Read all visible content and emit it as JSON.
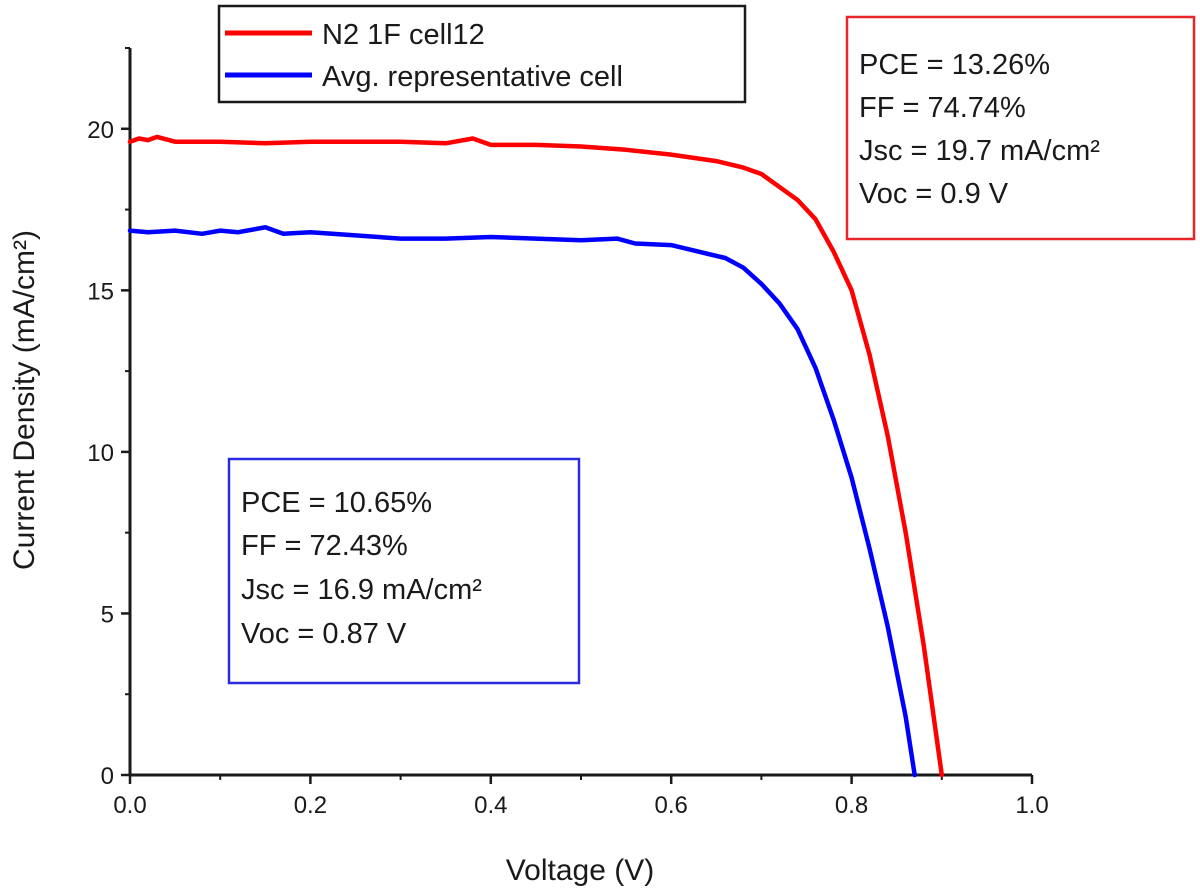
{
  "chart_data": {
    "type": "line",
    "xlabel": "Voltage (V)",
    "ylabel": "Current Density (mA/cm²)",
    "xlim": [
      0.0,
      1.0
    ],
    "ylim": [
      0,
      22.5
    ],
    "x_ticks": [
      "0.0",
      "0.2",
      "0.4",
      "0.6",
      "0.8",
      "1.0"
    ],
    "y_ticks": [
      "0",
      "5",
      "10",
      "15",
      "20"
    ],
    "grid": false,
    "legend_position": "top-center",
    "series": [
      {
        "name": "N2 1F cell12",
        "color": "#ff0000",
        "x": [
          0.0,
          0.01,
          0.02,
          0.03,
          0.05,
          0.1,
          0.15,
          0.2,
          0.25,
          0.3,
          0.35,
          0.38,
          0.4,
          0.45,
          0.5,
          0.55,
          0.6,
          0.65,
          0.68,
          0.7,
          0.72,
          0.74,
          0.76,
          0.78,
          0.8,
          0.82,
          0.84,
          0.86,
          0.88,
          0.89,
          0.9
        ],
        "y": [
          19.6,
          19.7,
          19.65,
          19.75,
          19.6,
          19.6,
          19.55,
          19.6,
          19.6,
          19.6,
          19.55,
          19.7,
          19.5,
          19.5,
          19.45,
          19.35,
          19.2,
          19.0,
          18.8,
          18.6,
          18.2,
          17.8,
          17.2,
          16.2,
          15.0,
          13.0,
          10.5,
          7.5,
          4.0,
          2.0,
          0.0
        ]
      },
      {
        "name": "Avg. representative cell",
        "color": "#0000ff",
        "x": [
          0.0,
          0.02,
          0.05,
          0.08,
          0.1,
          0.12,
          0.15,
          0.17,
          0.2,
          0.25,
          0.3,
          0.35,
          0.4,
          0.45,
          0.5,
          0.54,
          0.56,
          0.6,
          0.63,
          0.66,
          0.68,
          0.7,
          0.72,
          0.74,
          0.76,
          0.78,
          0.8,
          0.82,
          0.84,
          0.86,
          0.87
        ],
        "y": [
          16.85,
          16.8,
          16.85,
          16.75,
          16.85,
          16.8,
          16.95,
          16.75,
          16.8,
          16.7,
          16.6,
          16.6,
          16.65,
          16.6,
          16.55,
          16.6,
          16.45,
          16.4,
          16.2,
          16.0,
          15.7,
          15.2,
          14.6,
          13.8,
          12.6,
          11.0,
          9.2,
          7.0,
          4.6,
          1.8,
          0.0
        ]
      }
    ],
    "annotations": [
      {
        "color": "#e8262a",
        "lines": [
          "PCE = 13.26%",
          "FF = 74.74%",
          "Jsc = 19.7 mA/cm²",
          "Voc = 0.9 V"
        ]
      },
      {
        "color": "#2a2ae0",
        "lines": [
          "PCE = 10.65%",
          "FF = 72.43%",
          "Jsc = 16.9 mA/cm²",
          "Voc = 0.87 V"
        ]
      }
    ]
  }
}
